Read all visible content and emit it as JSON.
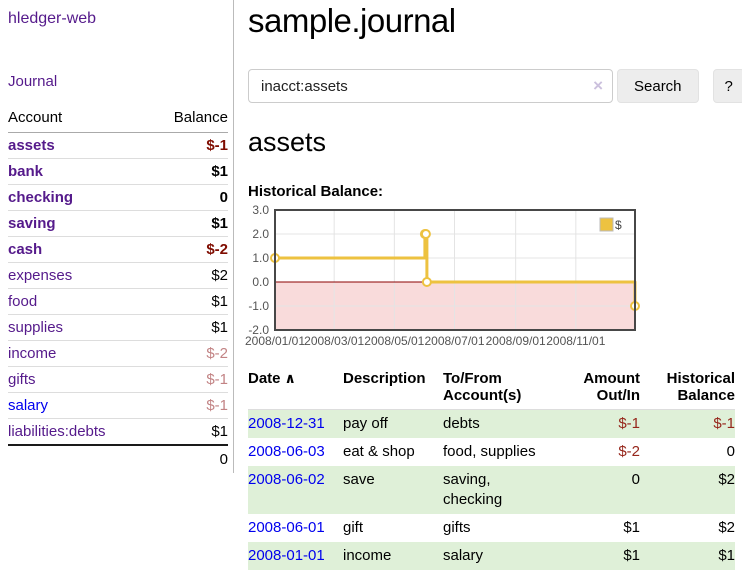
{
  "app": {
    "brand": "hledger-web",
    "nav": {
      "journal": "Journal"
    }
  },
  "sidebar": {
    "header": {
      "account": "Account",
      "balance": "Balance"
    },
    "accounts": [
      {
        "name": "assets",
        "depth": 1,
        "balance": "$-1"
      },
      {
        "name": "bank",
        "depth": 2,
        "balance": "$1"
      },
      {
        "name": "checking",
        "depth": 3,
        "balance": "0"
      },
      {
        "name": "saving",
        "depth": 3,
        "balance": "$1"
      },
      {
        "name": "cash",
        "depth": 2,
        "balance": "$-2"
      },
      {
        "name": "expenses",
        "depth": 1,
        "balance": "$2"
      },
      {
        "name": "food",
        "depth": 2,
        "balance": "$1"
      },
      {
        "name": "supplies",
        "depth": 2,
        "balance": "$1"
      },
      {
        "name": "income",
        "depth": 1,
        "balance": "$-2"
      },
      {
        "name": "gifts",
        "depth": 2,
        "balance": "$-1"
      },
      {
        "name": "salary",
        "depth": 2,
        "balance": "$-1"
      },
      {
        "name": "liabilities:debts",
        "depth": 1,
        "balance": "$1"
      }
    ],
    "total": "0"
  },
  "header": {
    "title": "sample.journal"
  },
  "search": {
    "value": "inacct:assets",
    "clear_icon": "×",
    "search_button": "Search",
    "help_button": "?"
  },
  "account_page": {
    "title": "assets",
    "chart_label": "Historical Balance:"
  },
  "chart_data": {
    "type": "line",
    "step": true,
    "title": "Historical Balance:",
    "series": [
      {
        "name": "$",
        "color": "#edc240",
        "points": [
          [
            "2008-01-01",
            1
          ],
          [
            "2008-06-01",
            2
          ],
          [
            "2008-06-02",
            2
          ],
          [
            "2008-06-03",
            0
          ],
          [
            "2008-12-31",
            -1
          ]
        ]
      }
    ],
    "xmin": "2008-01-01",
    "xmax": "2008-12-31",
    "ylim": [
      -2,
      3
    ],
    "yticks": [
      "3.0",
      "2.0",
      "1.0",
      "0.0",
      "-1.0",
      "-2.0"
    ],
    "xticks": [
      "2008/01/01",
      "2008/03/01",
      "2008/05/01",
      "2008/07/01",
      "2008/09/01",
      "2008/11/01"
    ],
    "legend_position": "top-right",
    "grid": true,
    "negative_fill": "#f9dbdb",
    "zero_line_color": "#8b0000",
    "border_color": "#474747",
    "tick_label_color": "#545454"
  },
  "register": {
    "columns": [
      "Date",
      "Description",
      "To/From Account(s)",
      "Amount Out/In",
      "Historical Balance"
    ],
    "sort_icon": "∧",
    "rows": [
      {
        "date": "2008-12-31",
        "description": "pay off",
        "accounts": "debts",
        "amount": "$-1",
        "balance": "$-1"
      },
      {
        "date": "2008-06-03",
        "description": "eat & shop",
        "accounts": "food, supplies",
        "amount": "$-2",
        "balance": "0"
      },
      {
        "date": "2008-06-02",
        "description": "save",
        "accounts": "saving, checking",
        "amount": "0",
        "balance": "$2"
      },
      {
        "date": "2008-06-01",
        "description": "gift",
        "accounts": "gifts",
        "amount": "$1",
        "balance": "$2"
      },
      {
        "date": "2008-01-01",
        "description": "income",
        "accounts": "salary",
        "amount": "$1",
        "balance": "$1"
      }
    ]
  }
}
